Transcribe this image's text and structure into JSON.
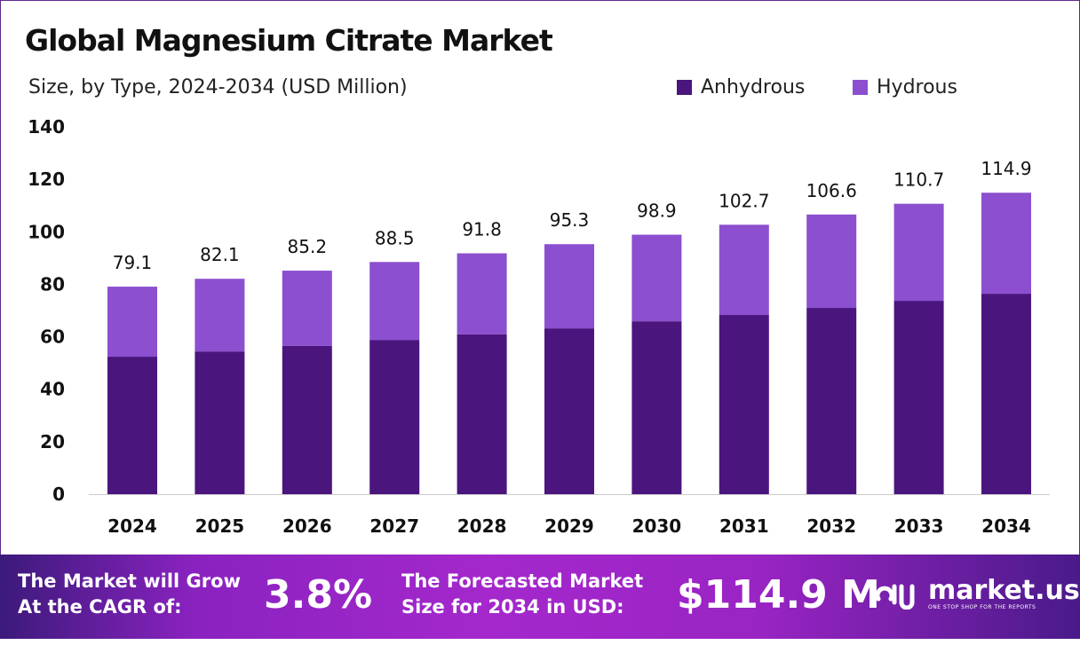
{
  "chart_data": {
    "type": "bar",
    "stacked": true,
    "title": "Global Magnesium Citrate  Market",
    "subtitle": "Size, by Type, 2024-2034 (USD Million)",
    "categories": [
      "2024",
      "2025",
      "2026",
      "2027",
      "2028",
      "2029",
      "2030",
      "2031",
      "2032",
      "2033",
      "2034"
    ],
    "series": [
      {
        "name": "Anhydrous",
        "color": "#4b157e",
        "values": [
          52.4,
          54.4,
          56.5,
          58.8,
          60.9,
          63.2,
          65.9,
          68.3,
          71.0,
          73.7,
          76.4
        ]
      },
      {
        "name": "Hydrous",
        "color": "#8b4fcf",
        "values": [
          26.7,
          27.7,
          28.7,
          29.7,
          30.9,
          32.1,
          33.0,
          34.4,
          35.6,
          37.0,
          38.5
        ]
      }
    ],
    "totals": [
      "79.1",
      "82.1",
      "85.2",
      "88.5",
      "91.8",
      "95.3",
      "98.9",
      "102.7",
      "106.6",
      "110.7",
      "114.9"
    ],
    "yticks": [
      "0",
      "20",
      "40",
      "60",
      "80",
      "100",
      "120",
      "140"
    ],
    "ylim": [
      0,
      140
    ],
    "grid": false,
    "legend_position": "top-right"
  },
  "banner": {
    "cagr_label_1": "The Market will Grow",
    "cagr_label_2": "At the CAGR of:",
    "cagr_value": "3.8%",
    "forecast_label_1": "The Forecasted Market",
    "forecast_label_2": "Size for 2034 in USD:",
    "forecast_value": "$114.9 M",
    "logo_text": "market.us",
    "logo_tagline": "ONE STOP SHOP FOR THE REPORTS"
  }
}
